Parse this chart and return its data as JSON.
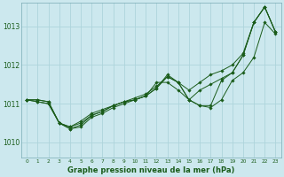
{
  "xlabel": "Graphe pression niveau de la mer (hPa)",
  "bg_color": "#cce8ee",
  "grid_color": "#aed4db",
  "line_color": "#1a5c1a",
  "xlim": [
    -0.5,
    23.5
  ],
  "ylim": [
    1009.6,
    1013.6
  ],
  "yticks": [
    1010,
    1011,
    1012,
    1013
  ],
  "xticks": [
    0,
    1,
    2,
    3,
    4,
    5,
    6,
    7,
    8,
    9,
    10,
    11,
    12,
    13,
    14,
    15,
    16,
    17,
    18,
    19,
    20,
    21,
    22,
    23
  ],
  "series": [
    [
      1011.1,
      1011.1,
      1011.05,
      1010.5,
      1010.4,
      1010.55,
      1010.75,
      1010.85,
      1010.95,
      1011.05,
      1011.15,
      1011.25,
      1011.45,
      1011.7,
      1011.55,
      1011.35,
      1011.55,
      1011.75,
      1011.85,
      1012.0,
      1012.3,
      1013.1,
      1013.5,
      1012.85
    ],
    [
      1011.1,
      1011.1,
      1011.05,
      1010.5,
      1010.35,
      1010.4,
      1010.65,
      1010.75,
      1010.9,
      1011.0,
      1011.1,
      1011.2,
      1011.55,
      1011.55,
      1011.35,
      1011.1,
      1010.95,
      1010.9,
      1011.1,
      1011.6,
      1011.8,
      1012.2,
      1013.1,
      1012.8
    ],
    [
      1011.1,
      1011.05,
      1011.0,
      1010.5,
      1010.35,
      1010.45,
      1010.7,
      1010.8,
      1010.95,
      1011.05,
      1011.1,
      1011.2,
      1011.4,
      1011.75,
      1011.55,
      1011.1,
      1010.95,
      1010.95,
      1011.6,
      1011.8,
      1012.25,
      1013.1,
      1013.5,
      1012.85
    ],
    [
      1011.1,
      1011.05,
      1011.0,
      1010.5,
      1010.4,
      1010.5,
      1010.7,
      1010.8,
      1010.95,
      1011.05,
      1011.1,
      1011.2,
      1011.4,
      1011.7,
      1011.55,
      1011.1,
      1011.35,
      1011.5,
      1011.65,
      1011.8,
      1012.25,
      1013.1,
      1013.5,
      1012.85
    ]
  ]
}
